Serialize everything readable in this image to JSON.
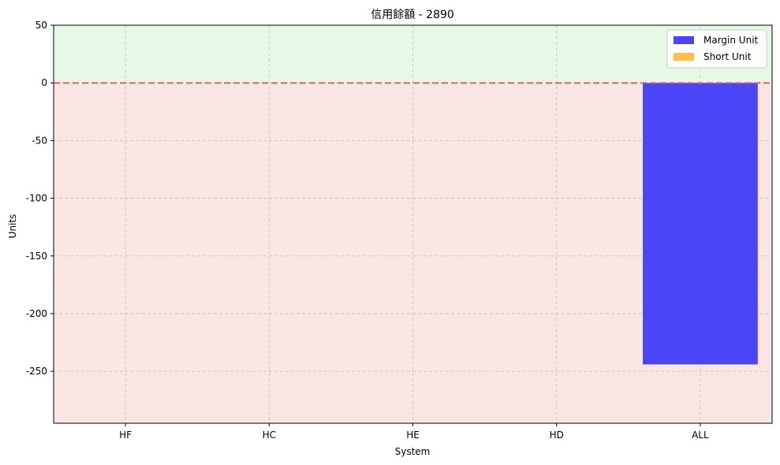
{
  "chart_data": {
    "type": "bar",
    "title": "信用餘額 - 2890",
    "xlabel": "System",
    "ylabel": "Units",
    "categories": [
      "HF",
      "HC",
      "HE",
      "HD",
      "ALL"
    ],
    "series": [
      {
        "name": "Margin Unit",
        "values": [
          0,
          0,
          0,
          0,
          -244
        ],
        "color": "#4a45f5"
      },
      {
        "name": "Short Unit",
        "values": [
          0,
          0,
          0,
          0,
          0
        ],
        "color": "#ffbe45"
      }
    ],
    "ylim": [
      -295,
      50
    ],
    "yticks": [
      50,
      0,
      -50,
      -100,
      -150,
      -200,
      -250
    ],
    "yticklabels": [
      "50",
      "0",
      "-50",
      "-100",
      "-150",
      "-200",
      "-250"
    ],
    "grid": true,
    "legend_position": "top-right",
    "positive_region_color": "#e6f8e6",
    "negative_region_color": "#f9e5e4",
    "zero_line_color": "#e8625e"
  }
}
